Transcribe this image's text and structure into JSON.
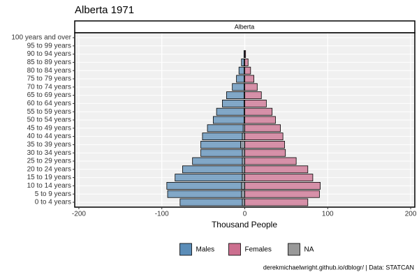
{
  "chart_data": {
    "type": "pyramid",
    "title": "Alberta 1971",
    "strip": "Alberta",
    "x_label": "Thousand People",
    "caption": "derekmichaelwright.github.io/dblogr/ | Data: STATCAN",
    "categories": [
      "0 to 4 years",
      "5 to 9 years",
      "10 to 14 years",
      "15 to 19 years",
      "20 to 24 years",
      "25 to 29 years",
      "30 to 34 years",
      "35 to 39 years",
      "40 to 44 years",
      "45 to 49 years",
      "50 to 54 years",
      "55 to 59 years",
      "60 to 64 years",
      "65 to 69 years",
      "70 to 74 years",
      "75 to 79 years",
      "80 to 84 years",
      "85 to 89 years",
      "90 to 94 years",
      "95 to 99 years",
      "100 years and over"
    ],
    "series": [
      {
        "name": "Males",
        "color": "#5b8db8",
        "values": [
          -78,
          -93,
          -94,
          -84,
          -75,
          -63,
          -53,
          -53,
          -51,
          -45,
          -38,
          -34,
          -27,
          -22,
          -15,
          -10,
          -7,
          -4,
          -1,
          0,
          0
        ]
      },
      {
        "name": "Females",
        "color": "#cc6f8f",
        "values": [
          76,
          90,
          91,
          82,
          76,
          62,
          49,
          48,
          46,
          43,
          37,
          33,
          26,
          20,
          15,
          11,
          7,
          4,
          1,
          0,
          0
        ]
      },
      {
        "name": "NA",
        "color": "#999999",
        "values": [
          -3,
          -4,
          -4,
          -3,
          -3,
          -3,
          -3,
          -5,
          -3,
          -2,
          -1,
          -1,
          -1,
          -1,
          -1,
          -1,
          -1,
          -1,
          0,
          0,
          0
        ]
      }
    ],
    "xlim": [
      -205,
      205
    ],
    "xticks": [
      -200,
      -100,
      0,
      100,
      200
    ],
    "grid": true
  }
}
